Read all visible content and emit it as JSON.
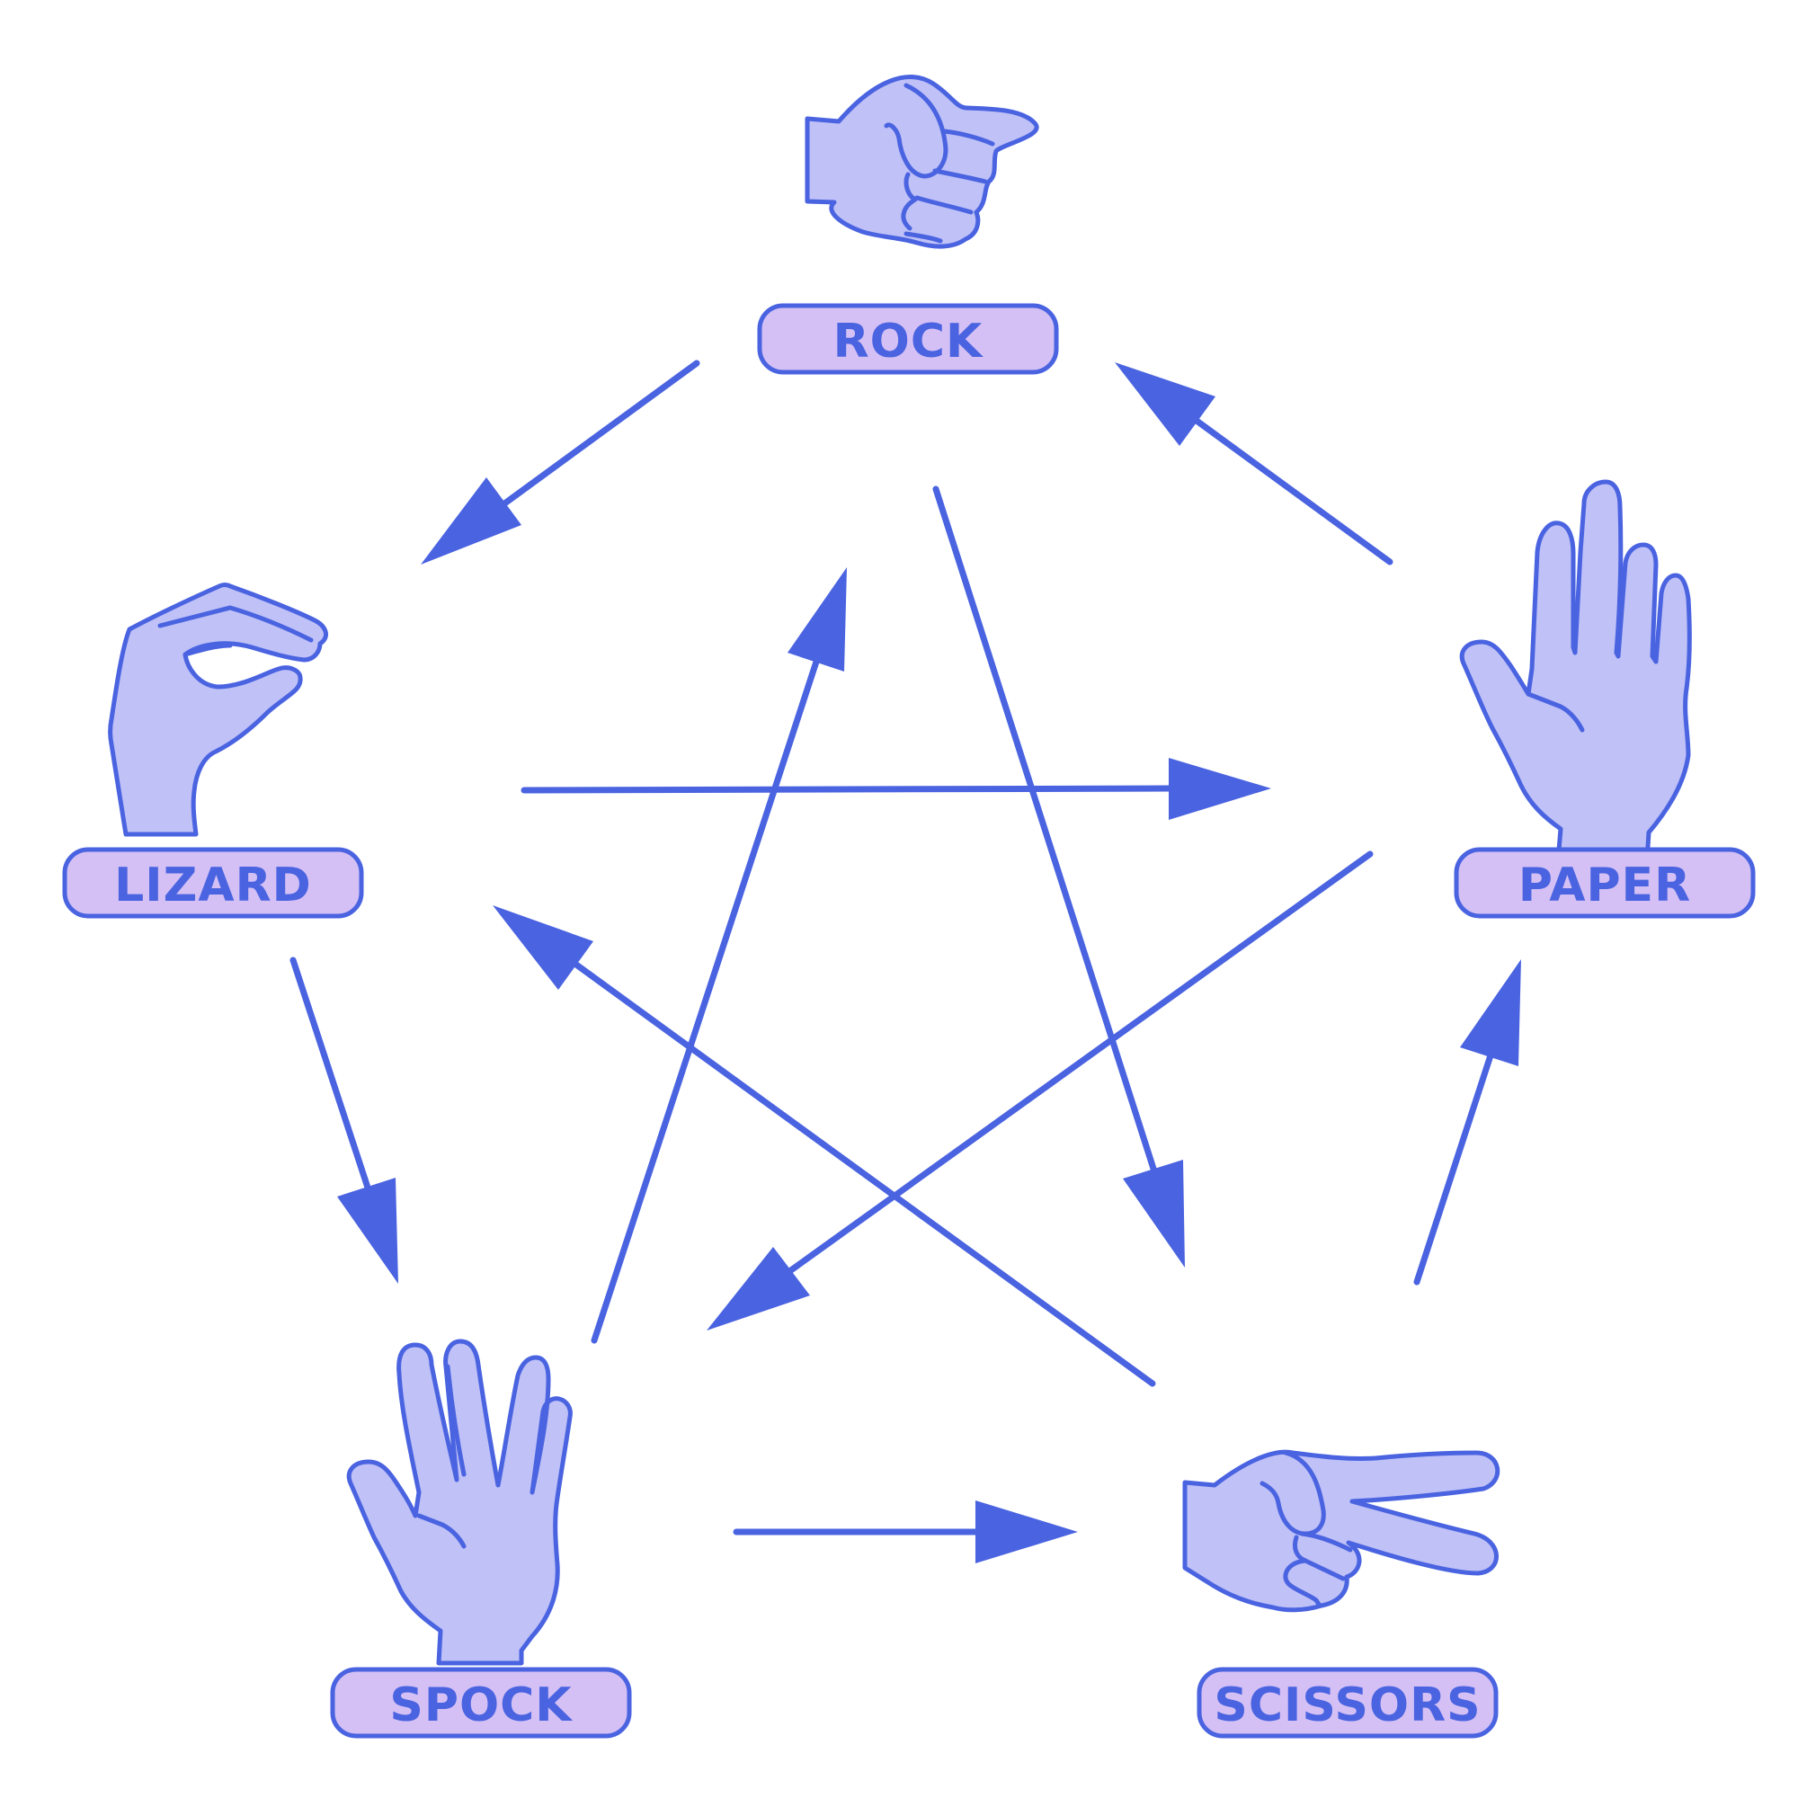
{
  "colors": {
    "stroke": "#4a63e0",
    "hand_fill": "#bfc1f7",
    "label_fill": "#d4c0f5",
    "label_text": "#4a63e0",
    "background": "#ffffff"
  },
  "nodes": [
    {
      "id": "rock",
      "label": "ROCK",
      "icon": "fist-icon"
    },
    {
      "id": "paper",
      "label": "PAPER",
      "icon": "open-hand-icon"
    },
    {
      "id": "scissors",
      "label": "SCISSORS",
      "icon": "scissors-hand-icon"
    },
    {
      "id": "spock",
      "label": "SPOCK",
      "icon": "vulcan-salute-icon"
    },
    {
      "id": "lizard",
      "label": "LIZARD",
      "icon": "lizard-hand-icon"
    }
  ],
  "edges": [
    {
      "from": "rock",
      "to": "lizard"
    },
    {
      "from": "rock",
      "to": "scissors"
    },
    {
      "from": "paper",
      "to": "rock"
    },
    {
      "from": "paper",
      "to": "spock"
    },
    {
      "from": "scissors",
      "to": "paper"
    },
    {
      "from": "scissors",
      "to": "lizard"
    },
    {
      "from": "spock",
      "to": "scissors"
    },
    {
      "from": "spock",
      "to": "rock"
    },
    {
      "from": "lizard",
      "to": "spock"
    },
    {
      "from": "lizard",
      "to": "paper"
    }
  ]
}
